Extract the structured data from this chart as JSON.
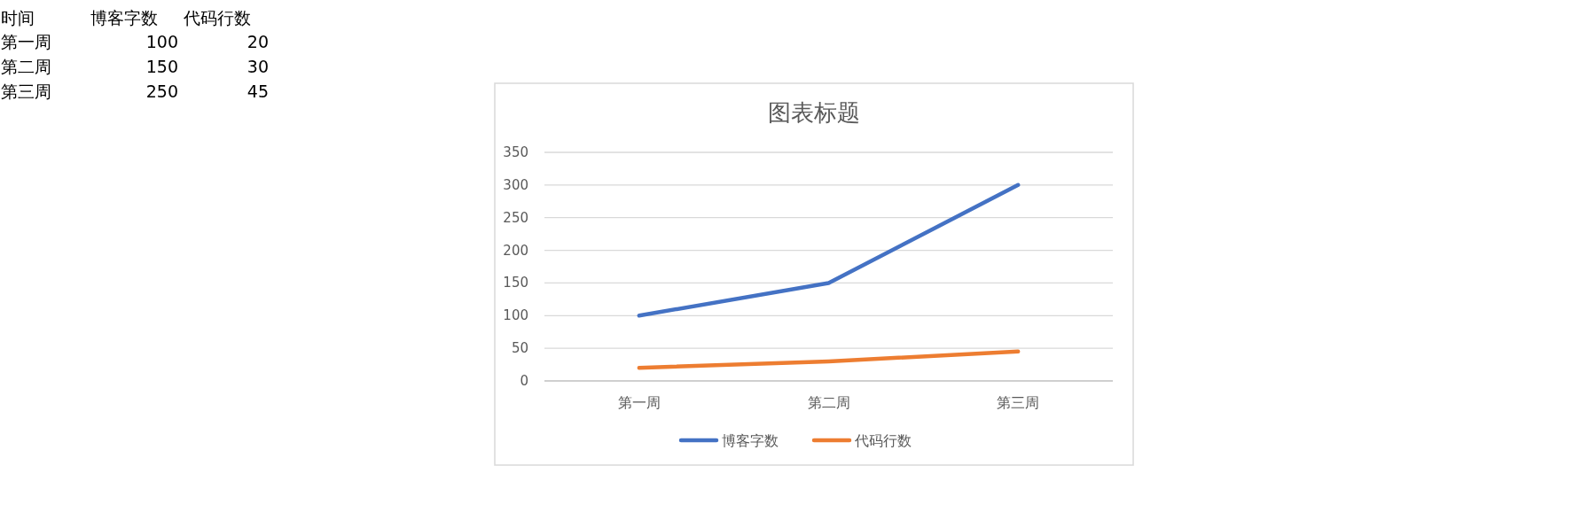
{
  "chart_data": {
    "type": "line",
    "title": "图表标题",
    "categories": [
      "第一周",
      "第二周",
      "第三周"
    ],
    "series": [
      {
        "name": "博客字数",
        "color": "#4472c4",
        "values": [
          100,
          150,
          300
        ]
      },
      {
        "name": "代码行数",
        "color": "#ed7d31",
        "values": [
          20,
          30,
          45
        ]
      }
    ],
    "ylim": [
      0,
      350
    ],
    "yticks": [
      0,
      50,
      100,
      150,
      200,
      250,
      300,
      350
    ],
    "grid": "y",
    "legend": "bottom",
    "annotations": [
      "时间",
      "博客字数",
      "代码行数",
      "第一周",
      "100",
      "20",
      "第二周",
      "150",
      "30",
      "第三周",
      "250",
      "45"
    ]
  }
}
